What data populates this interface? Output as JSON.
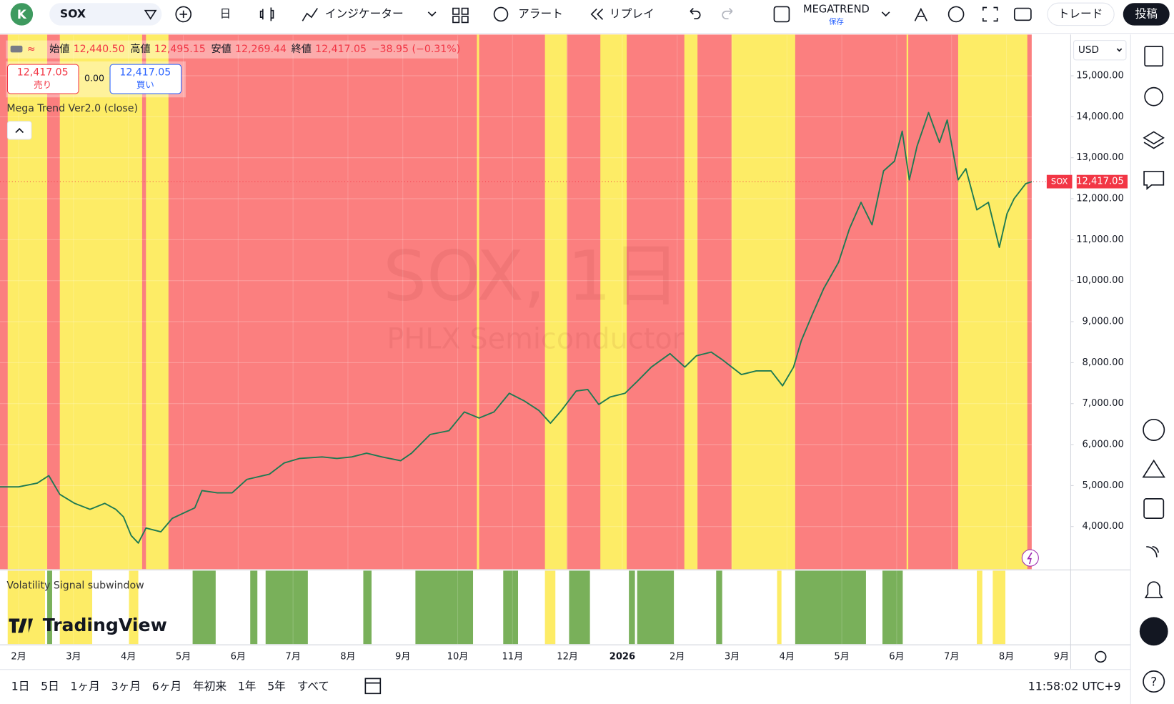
{
  "toolbar": {
    "avatar": "K",
    "symbol": "SOX",
    "interval": "日",
    "indicators": "インジケーター",
    "alert": "アラート",
    "replay": "リプレイ",
    "layout_name": "MEGATREND",
    "save": "保存",
    "trade": "トレード",
    "publish": "投稿"
  },
  "legend": {
    "open_label": "始値",
    "open": "12,440.50",
    "high_label": "高値",
    "high": "12,495.15",
    "low_label": "安値",
    "low": "12,269.44",
    "close_label": "終値",
    "close": "12,417.05",
    "change": "−38.95 (−0.31%)",
    "sell_price": "12,417.05",
    "sell": "売り",
    "spread": "0.00",
    "buy_price": "12,417.05",
    "buy": "買い",
    "indicator": "Mega Trend Ver2.0 (close)",
    "subwindow": "Volatility Signal subwindow"
  },
  "watermark": {
    "title": "SOX, 1日",
    "subtitle": "PHLX Semiconductor",
    "brand": "TradingView"
  },
  "chart_data": {
    "type": "line",
    "currency": "USD",
    "color": "#1e7a52",
    "last_price": {
      "value": 12417.05,
      "label": "12,417.05"
    },
    "xlim": [
      -0.34,
      19.17
    ],
    "ylim": [
      2960,
      15990
    ],
    "xticks": [
      {
        "value": 0,
        "label": "2月"
      },
      {
        "value": 1,
        "label": "3月"
      },
      {
        "value": 2,
        "label": "4月"
      },
      {
        "value": 3,
        "label": "5月"
      },
      {
        "value": 4,
        "label": "6月"
      },
      {
        "value": 5,
        "label": "7月"
      },
      {
        "value": 6,
        "label": "8月"
      },
      {
        "value": 7,
        "label": "9月"
      },
      {
        "value": 8,
        "label": "10月"
      },
      {
        "value": 9,
        "label": "11月"
      },
      {
        "value": 10,
        "label": "12月"
      },
      {
        "value": 11,
        "label": "2026"
      },
      {
        "value": 12,
        "label": "2月"
      },
      {
        "value": 13,
        "label": "3月"
      },
      {
        "value": 14,
        "label": "4月"
      },
      {
        "value": 15,
        "label": "5月"
      },
      {
        "value": 16,
        "label": "6月"
      },
      {
        "value": 17,
        "label": "7月"
      },
      {
        "value": 18,
        "label": "8月"
      },
      {
        "value": 19,
        "label": "9月"
      }
    ],
    "yticks": [
      {
        "value": 4000,
        "label": "4,000.00"
      },
      {
        "value": 5000,
        "label": "5,000.00"
      },
      {
        "value": 6000,
        "label": "6,000.00"
      },
      {
        "value": 7000,
        "label": "7,000.00"
      },
      {
        "value": 8000,
        "label": "8,000.00"
      },
      {
        "value": 9000,
        "label": "9,000.00"
      },
      {
        "value": 10000,
        "label": "10,000.00"
      },
      {
        "value": 11000,
        "label": "11,000.00"
      },
      {
        "value": 12000,
        "label": "12,000.00"
      },
      {
        "value": 13000,
        "label": "13,000.00"
      },
      {
        "value": 14000,
        "label": "14,000.00"
      },
      {
        "value": 15000,
        "label": "15,000.00"
      }
    ],
    "regime_bands": {
      "red_color": "#fb7f7f",
      "yellow_color": "#fdec66",
      "red": [
        [
          -0.34,
          18.46
        ]
      ],
      "yellow": [
        [
          -0.2,
          0.52
        ],
        [
          0.75,
          2.25
        ],
        [
          2.32,
          2.73
        ],
        [
          8.35,
          8.39
        ],
        [
          9.59,
          9.99
        ],
        [
          10.6,
          11.08
        ],
        [
          12.13,
          12.37
        ],
        [
          12.99,
          14.15
        ],
        [
          16.18,
          16.21
        ],
        [
          17.12,
          18.38
        ]
      ]
    },
    "signal_bands": {
      "green_color": "#79b05a",
      "yellow_color": "#fdec66",
      "green": [
        [
          0.52,
          0.61
        ],
        [
          3.17,
          3.59
        ],
        [
          4.22,
          4.35
        ],
        [
          4.5,
          5.27
        ],
        [
          6.28,
          6.43
        ],
        [
          7.23,
          8.28
        ],
        [
          8.83,
          9.1
        ],
        [
          10.03,
          10.41
        ],
        [
          11.12,
          11.23
        ],
        [
          11.27,
          11.94
        ],
        [
          12.71,
          12.82
        ],
        [
          14.15,
          15.44
        ],
        [
          15.74,
          16.11
        ]
      ],
      "yellow": [
        [
          -0.2,
          0.48
        ],
        [
          0.75,
          1.34
        ],
        [
          2.01,
          2.18
        ],
        [
          9.59,
          9.78
        ],
        [
          13.82,
          13.9
        ],
        [
          17.46,
          17.56
        ],
        [
          17.75,
          17.98
        ]
      ]
    },
    "series": [
      {
        "name": "SOX",
        "x": [
          -0.34,
          0,
          0.34,
          0.55,
          0.75,
          1.02,
          1.3,
          1.57,
          1.77,
          1.91,
          2.05,
          2.18,
          2.32,
          2.59,
          2.8,
          3.21,
          3.34,
          3.62,
          3.89,
          4.16,
          4.57,
          4.84,
          5.12,
          5.53,
          5.8,
          6.07,
          6.34,
          6.62,
          6.96,
          7.16,
          7.5,
          7.84,
          8.12,
          8.39,
          8.66,
          8.94,
          9.21,
          9.48,
          9.69,
          9.89,
          10.16,
          10.37,
          10.57,
          10.78,
          11.05,
          11.26,
          11.53,
          11.87,
          12.14,
          12.35,
          12.62,
          12.82,
          13.17,
          13.44,
          13.71,
          13.92,
          14.12,
          14.26,
          14.46,
          14.67,
          14.94,
          15.14,
          15.35,
          15.55,
          15.76,
          15.96,
          16.1,
          16.23,
          16.37,
          16.58,
          16.78,
          16.92,
          17.12,
          17.26,
          17.46,
          17.67,
          17.87,
          18.01,
          18.14,
          18.35,
          18.46
        ],
        "values": [
          4968,
          4968,
          5060,
          5242,
          4786,
          4566,
          4420,
          4566,
          4420,
          4238,
          3781,
          3598,
          3963,
          3872,
          4201,
          4457,
          4877,
          4822,
          4822,
          5151,
          5279,
          5553,
          5663,
          5699,
          5663,
          5699,
          5790,
          5699,
          5608,
          5790,
          6247,
          6339,
          6795,
          6649,
          6795,
          7252,
          7069,
          6832,
          6521,
          6832,
          7307,
          7344,
          6978,
          7161,
          7252,
          7526,
          7892,
          8220,
          7892,
          8166,
          8257,
          8074,
          7709,
          7800,
          7800,
          7435,
          7892,
          8531,
          9170,
          9810,
          10449,
          11271,
          11911,
          11363,
          12678,
          12916,
          13647,
          12459,
          13281,
          14103,
          13373,
          13920,
          12459,
          12733,
          11728,
          11911,
          10815,
          11637,
          12002,
          12367,
          12417
        ]
      }
    ]
  },
  "bottom_bar": {
    "ranges": [
      "1日",
      "5日",
      "1ヶ月",
      "3ヶ月",
      "6ヶ月",
      "年初来",
      "1年",
      "5年",
      "すべて"
    ],
    "clock": "11:58:02 UTC+9"
  }
}
